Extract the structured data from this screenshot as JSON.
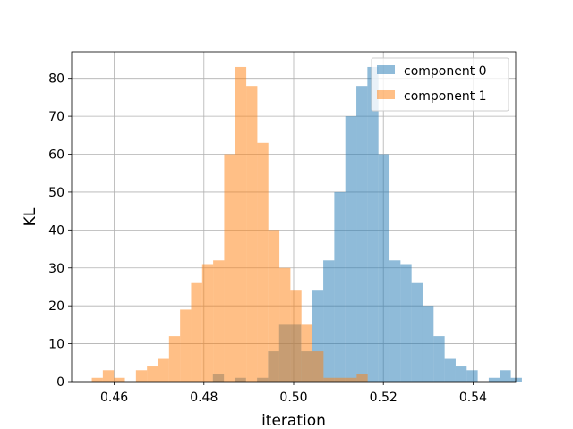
{
  "chart_data": {
    "type": "histogram",
    "xlabel": "iteration",
    "ylabel": "KL",
    "xlim": [
      0.4505,
      0.5495
    ],
    "ylim": [
      0,
      87
    ],
    "xticks": [
      0.46,
      0.48,
      0.5,
      0.52,
      0.54
    ],
    "yticks": [
      0,
      10,
      20,
      30,
      40,
      50,
      60,
      70,
      80
    ],
    "grid": true,
    "legend_position": "top-right",
    "series": [
      {
        "name": "component 0",
        "color": "#1f77b4",
        "alpha": 0.5,
        "bin_start": 0.482,
        "bin_width": 0.00246,
        "values": [
          2,
          0,
          1,
          0,
          1,
          8,
          15,
          15,
          8,
          24,
          32,
          50,
          70,
          78,
          83,
          60,
          32,
          31,
          26,
          20,
          12,
          6,
          4,
          3,
          0,
          1,
          3,
          1
        ]
      },
      {
        "name": "component 1",
        "color": "#ff7f0e",
        "alpha": 0.5,
        "bin_start": 0.455,
        "bin_width": 0.00246,
        "values": [
          1,
          3,
          1,
          0,
          3,
          4,
          6,
          12,
          19,
          26,
          31,
          32,
          60,
          83,
          78,
          63,
          40,
          30,
          24,
          15,
          8,
          1,
          1,
          1,
          2
        ]
      }
    ]
  }
}
